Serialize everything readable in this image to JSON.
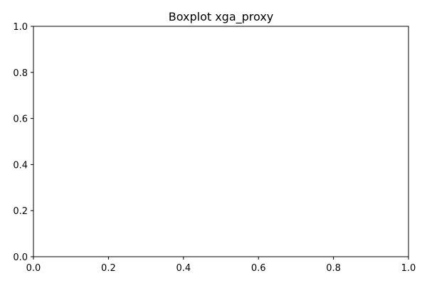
{
  "chart_data": {
    "type": "box",
    "title": "Boxplot xga_proxy",
    "xlabel": "",
    "ylabel": "",
    "xlim": [
      0,
      1
    ],
    "ylim": [
      0,
      1
    ],
    "x_ticks": [
      "0.0",
      "0.2",
      "0.4",
      "0.6",
      "0.8",
      "1.0"
    ],
    "y_ticks": [
      "0.0",
      "0.2",
      "0.4",
      "0.6",
      "0.8",
      "1.0"
    ],
    "series": [],
    "grid": false,
    "legend": "none"
  }
}
